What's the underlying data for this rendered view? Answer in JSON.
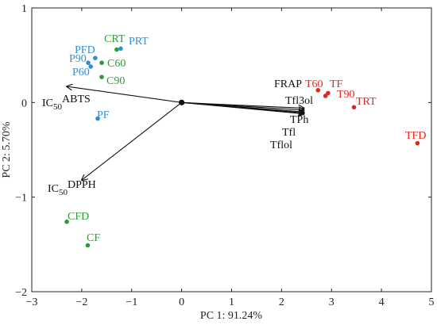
{
  "chart_data": {
    "type": "scatter",
    "title": "",
    "xlabel": "PC 1: 91.24%",
    "ylabel": "PC 2: 5.70%",
    "xlim": [
      -3,
      5
    ],
    "ylim": [
      -2,
      1
    ],
    "xticks": [
      -3,
      -2,
      -1,
      0,
      1,
      2,
      3,
      4,
      5
    ],
    "yticks": [
      -2,
      -1,
      0,
      1
    ],
    "grid": false,
    "colors": {
      "green": "#2e9b3a",
      "blue": "#2f8fd6",
      "red": "#e0281f",
      "arrow": "#111111",
      "axis": "#222222"
    },
    "points": [
      {
        "label": "CRT",
        "x": -1.3,
        "y": 0.56,
        "color": "green"
      },
      {
        "label": "PRT",
        "x": -1.22,
        "y": 0.57,
        "color": "blue"
      },
      {
        "label": "PFD",
        "x": -1.73,
        "y": 0.47,
        "color": "blue"
      },
      {
        "label": "P90",
        "x": -1.87,
        "y": 0.42,
        "color": "blue"
      },
      {
        "label": "C60",
        "x": -1.6,
        "y": 0.42,
        "color": "green"
      },
      {
        "label": "P60",
        "x": -1.82,
        "y": 0.38,
        "color": "blue"
      },
      {
        "label": "C90",
        "x": -1.6,
        "y": 0.27,
        "color": "green"
      },
      {
        "label": "PF",
        "x": -1.68,
        "y": -0.17,
        "color": "blue"
      },
      {
        "label": "CFD",
        "x": -2.3,
        "y": -1.26,
        "color": "green"
      },
      {
        "label": "CF",
        "x": -1.88,
        "y": -1.51,
        "color": "green"
      },
      {
        "label": "T60",
        "x": 2.73,
        "y": 0.13,
        "color": "red"
      },
      {
        "label": "TF",
        "x": 2.93,
        "y": 0.1,
        "color": "red"
      },
      {
        "label": "T90",
        "x": 2.88,
        "y": 0.07,
        "color": "red"
      },
      {
        "label": "TRT",
        "x": 3.45,
        "y": -0.05,
        "color": "red"
      },
      {
        "label": "TFD",
        "x": 4.72,
        "y": -0.43,
        "color": "red"
      }
    ],
    "vectors": [
      {
        "label": "IC50ABTS",
        "main": "IC",
        "sub": "50",
        "post": "ABTS",
        "x": -2.3,
        "y": 0.17
      },
      {
        "label": "IC50DPPH",
        "main": "IC",
        "sub": "50",
        "post": "DPPH",
        "x": -2.0,
        "y": -0.82
      },
      {
        "label": "FRAP",
        "main": "FRAP",
        "x": 2.45,
        "y": -0.06
      },
      {
        "label": "Tfl3ol",
        "main": "Tfl3ol",
        "x": 2.45,
        "y": -0.08
      },
      {
        "label": "TPh",
        "main": "TPh",
        "x": 2.45,
        "y": -0.1
      },
      {
        "label": "Tfl",
        "main": "Tfl",
        "x": 2.45,
        "y": -0.11
      },
      {
        "label": "Tflol",
        "main": "Tflol",
        "x": 2.45,
        "y": -0.12
      }
    ],
    "origin_marker": {
      "x": 0,
      "y": 0
    }
  }
}
